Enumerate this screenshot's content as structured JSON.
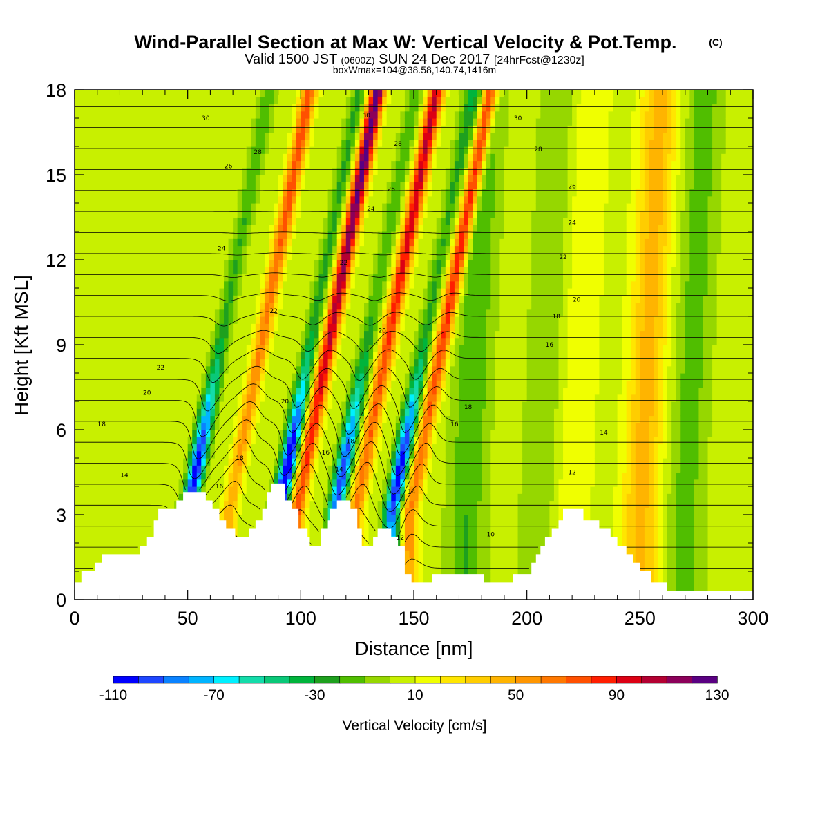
{
  "figure": {
    "title": "Wind-Parallel Section at Max W: Vertical Velocity & Pot.Temp.",
    "title_mark": "(C)",
    "subtitle_valid": "Valid 1500 JST",
    "subtitle_utc": "(0600Z)",
    "subtitle_date": "SUN 24 Dec 2017",
    "subtitle_fcst": "[24hrFcst@1230z]",
    "subtitle_box": "boxWmax=104@38.58,140.74,1416m"
  },
  "colorbar": {
    "title": "Vertical Velocity [cm/s]",
    "tick_labels": [
      "-110",
      "-70",
      "-30",
      "10",
      "50",
      "90",
      "130"
    ],
    "tick_values": [
      -110,
      -70,
      -30,
      10,
      50,
      90,
      130
    ],
    "colors": [
      "#0000ff",
      "#1e46ff",
      "#0a82ff",
      "#00b4ff",
      "#00f0ff",
      "#14dcaa",
      "#0ac878",
      "#00b43c",
      "#1ea01e",
      "#50be00",
      "#96d700",
      "#c8f000",
      "#f0ff00",
      "#ffe600",
      "#ffcd00",
      "#ffb400",
      "#ff9600",
      "#ff7800",
      "#ff5000",
      "#ff1e00",
      "#dc0014",
      "#b40032",
      "#8c005a",
      "#5a0082"
    ]
  },
  "chart_data": {
    "type": "heatmap",
    "xlabel": "Distance [nm]",
    "ylabel": "Height [Kft MSL]",
    "xlim": [
      0,
      300
    ],
    "ylim": [
      0,
      18
    ],
    "xticks": [
      0,
      50,
      100,
      150,
      200,
      250,
      300
    ],
    "yticks": [
      0,
      3,
      6,
      9,
      12,
      15,
      18
    ],
    "xtick_labels": [
      "0",
      "50",
      "100",
      "150",
      "200",
      "250",
      "300"
    ],
    "ytick_labels": [
      "0",
      "3",
      "6",
      "9",
      "12",
      "15",
      "18"
    ],
    "field": "Vertical Velocity",
    "field_units": "cm/s",
    "contour_field": "Potential Temperature",
    "terrain": [
      [
        0,
        0.6
      ],
      [
        3,
        0.6
      ],
      [
        3,
        1.0
      ],
      [
        9,
        1.0
      ],
      [
        9,
        1.3
      ],
      [
        12,
        1.3
      ],
      [
        12,
        1.6
      ],
      [
        29,
        1.6
      ],
      [
        29,
        1.9
      ],
      [
        32,
        1.9
      ],
      [
        32,
        2.2
      ],
      [
        35,
        2.2
      ],
      [
        35,
        2.8
      ],
      [
        37,
        2.8
      ],
      [
        37,
        3.2
      ],
      [
        45,
        3.2
      ],
      [
        45,
        3.5
      ],
      [
        48,
        3.5
      ],
      [
        48,
        3.8
      ],
      [
        58,
        3.8
      ],
      [
        58,
        3.5
      ],
      [
        61,
        3.5
      ],
      [
        61,
        3.2
      ],
      [
        64,
        3.2
      ],
      [
        64,
        2.8
      ],
      [
        67,
        2.8
      ],
      [
        67,
        2.5
      ],
      [
        71,
        2.5
      ],
      [
        71,
        2.2
      ],
      [
        77,
        2.2
      ],
      [
        77,
        2.5
      ],
      [
        80,
        2.5
      ],
      [
        80,
        2.8
      ],
      [
        83,
        2.8
      ],
      [
        83,
        3.2
      ],
      [
        85,
        3.2
      ],
      [
        85,
        3.8
      ],
      [
        87,
        3.8
      ],
      [
        87,
        4.1
      ],
      [
        93,
        4.1
      ],
      [
        93,
        3.5
      ],
      [
        96,
        3.5
      ],
      [
        96,
        3.2
      ],
      [
        99,
        3.2
      ],
      [
        99,
        2.5
      ],
      [
        103,
        2.5
      ],
      [
        103,
        2.2
      ],
      [
        104,
        2.2
      ],
      [
        104,
        1.9
      ],
      [
        109,
        1.9
      ],
      [
        109,
        2.5
      ],
      [
        112,
        2.5
      ],
      [
        112,
        2.8
      ],
      [
        113,
        2.8
      ],
      [
        113,
        3.2
      ],
      [
        116,
        3.2
      ],
      [
        116,
        3.5
      ],
      [
        122,
        3.5
      ],
      [
        122,
        3.2
      ],
      [
        125,
        3.2
      ],
      [
        125,
        2.5
      ],
      [
        127,
        2.5
      ],
      [
        127,
        1.9
      ],
      [
        132,
        1.9
      ],
      [
        132,
        2.2
      ],
      [
        134,
        2.2
      ],
      [
        134,
        2.5
      ],
      [
        140,
        2.5
      ],
      [
        140,
        2.2
      ],
      [
        143,
        2.2
      ],
      [
        143,
        1.9
      ],
      [
        146,
        1.9
      ],
      [
        146,
        0.9
      ],
      [
        149,
        0.9
      ],
      [
        149,
        0.6
      ],
      [
        158,
        0.6
      ],
      [
        158,
        0.9
      ],
      [
        181,
        0.9
      ],
      [
        181,
        0.6
      ],
      [
        194,
        0.6
      ],
      [
        194,
        0.9
      ],
      [
        202,
        0.9
      ],
      [
        202,
        1.3
      ],
      [
        204,
        1.3
      ],
      [
        204,
        1.6
      ],
      [
        206,
        1.6
      ],
      [
        206,
        1.9
      ],
      [
        208,
        1.9
      ],
      [
        208,
        2.2
      ],
      [
        211,
        2.2
      ],
      [
        211,
        2.5
      ],
      [
        214,
        2.5
      ],
      [
        214,
        2.8
      ],
      [
        216,
        2.8
      ],
      [
        216,
        3.2
      ],
      [
        225,
        3.2
      ],
      [
        225,
        2.8
      ],
      [
        232,
        2.8
      ],
      [
        232,
        2.5
      ],
      [
        237,
        2.5
      ],
      [
        237,
        2.2
      ],
      [
        240,
        2.2
      ],
      [
        240,
        1.9
      ],
      [
        244,
        1.9
      ],
      [
        244,
        1.6
      ],
      [
        247,
        1.6
      ],
      [
        247,
        1.3
      ],
      [
        250,
        1.3
      ],
      [
        250,
        1.0
      ],
      [
        255,
        1.0
      ],
      [
        255,
        0.6
      ],
      [
        262,
        0.6
      ],
      [
        262,
        0.3
      ],
      [
        300,
        0.3
      ]
    ],
    "bands": [
      {
        "x": 50,
        "w_base": -100
      },
      {
        "x": 68,
        "w_base": 60
      },
      {
        "x": 90,
        "w_base": -110
      },
      {
        "x": 98,
        "w_base": 100
      },
      {
        "x": 115,
        "w_base": -90
      },
      {
        "x": 124,
        "w_base": 80
      },
      {
        "x": 140,
        "w_base": -100
      },
      {
        "x": 148,
        "w_base": 80
      },
      {
        "x": 173,
        "w_base": -25
      },
      {
        "x": 205,
        "w_base": -15
      },
      {
        "x": 220,
        "w_base": 15
      },
      {
        "x": 250,
        "w_base": 40
      },
      {
        "x": 270,
        "w_base": -20
      }
    ],
    "theta_labels": [
      {
        "x": 12,
        "z": 6.2,
        "text": "18"
      },
      {
        "x": 22,
        "z": 4.4,
        "text": "14"
      },
      {
        "x": 32,
        "z": 7.3,
        "text": "20"
      },
      {
        "x": 38,
        "z": 8.2,
        "text": "22"
      },
      {
        "x": 64,
        "z": 4.0,
        "text": "16"
      },
      {
        "x": 73,
        "z": 5.0,
        "text": "18"
      },
      {
        "x": 65,
        "z": 12.4,
        "text": "24"
      },
      {
        "x": 68,
        "z": 15.3,
        "text": "26"
      },
      {
        "x": 81,
        "z": 15.8,
        "text": "28"
      },
      {
        "x": 58,
        "z": 17.0,
        "text": "30"
      },
      {
        "x": 88,
        "z": 10.2,
        "text": "22"
      },
      {
        "x": 93,
        "z": 7.0,
        "text": "20"
      },
      {
        "x": 111,
        "z": 5.2,
        "text": "16"
      },
      {
        "x": 117,
        "z": 4.6,
        "text": "14"
      },
      {
        "x": 122,
        "z": 5.6,
        "text": "18"
      },
      {
        "x": 119,
        "z": 11.9,
        "text": "22"
      },
      {
        "x": 129,
        "z": 17.1,
        "text": "30"
      },
      {
        "x": 131,
        "z": 13.8,
        "text": "24"
      },
      {
        "x": 140,
        "z": 14.5,
        "text": "26"
      },
      {
        "x": 143,
        "z": 16.1,
        "text": "28"
      },
      {
        "x": 136,
        "z": 9.5,
        "text": "20"
      },
      {
        "x": 144,
        "z": 2.2,
        "text": "12"
      },
      {
        "x": 149,
        "z": 3.8,
        "text": "14"
      },
      {
        "x": 168,
        "z": 6.2,
        "text": "16"
      },
      {
        "x": 174,
        "z": 6.8,
        "text": "18"
      },
      {
        "x": 184,
        "z": 2.3,
        "text": "10"
      },
      {
        "x": 196,
        "z": 17.0,
        "text": "30"
      },
      {
        "x": 205,
        "z": 15.9,
        "text": "28"
      },
      {
        "x": 220,
        "z": 14.6,
        "text": "26"
      },
      {
        "x": 220,
        "z": 13.3,
        "text": "24"
      },
      {
        "x": 216,
        "z": 12.1,
        "text": "22"
      },
      {
        "x": 222,
        "z": 10.6,
        "text": "20"
      },
      {
        "x": 213,
        "z": 10.0,
        "text": "18"
      },
      {
        "x": 210,
        "z": 9.0,
        "text": "16"
      },
      {
        "x": 234,
        "z": 5.9,
        "text": "14"
      },
      {
        "x": 220,
        "z": 4.5,
        "text": "12"
      }
    ]
  }
}
